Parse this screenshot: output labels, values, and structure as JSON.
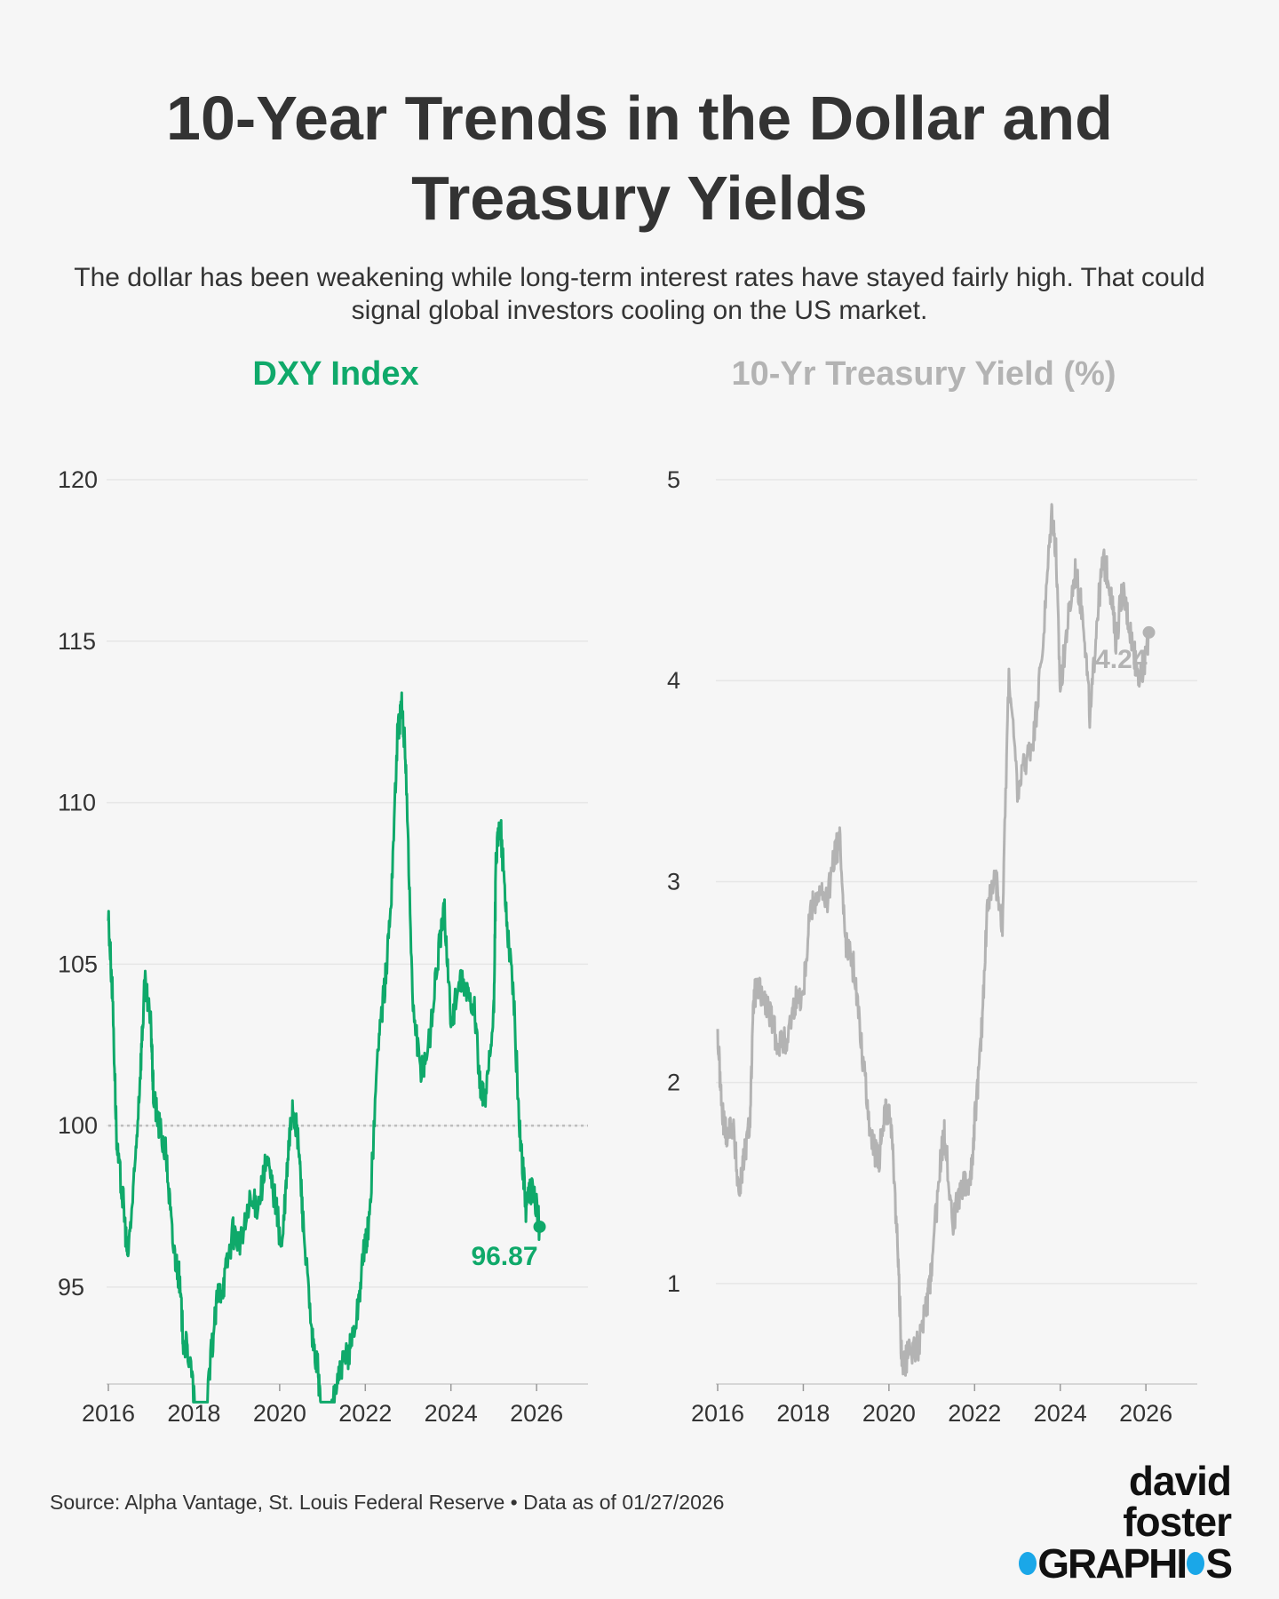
{
  "title": "10-Year Trends in the Dollar and Treasury Yields",
  "subtitle": "The dollar has been weakening while long-term interest rates have stayed fairly high. That could signal global investors cooling on the US market.",
  "source": "Source: Alpha Vantage, St. Louis Federal Reserve • Data as of 01/27/2026",
  "logo": {
    "line1": "david foster",
    "line2_part1": "GRAPHI",
    "line2_part2": "S",
    "dot_color": "#1aa7e8"
  },
  "colors": {
    "dxy": "#0fa96a",
    "treasury": "#b3b3b3",
    "text": "#333333",
    "grid": "#e6e6e6",
    "background": "#f6f6f6"
  },
  "chart_data": [
    {
      "type": "line",
      "title": "DXY Index",
      "xlabel": "",
      "ylabel": "",
      "x_ticks": [
        "2016",
        "2018",
        "2020",
        "2022",
        "2024",
        "2026"
      ],
      "y_ticks": [
        95,
        100,
        105,
        110,
        115,
        120
      ],
      "xlim": [
        2016.0,
        2027.2
      ],
      "ylim": [
        92.0,
        120.0
      ],
      "reference_line": 100,
      "end_label": "96.87",
      "grid": true,
      "series": [
        {
          "x": [
            2016.0,
            2016.1,
            2016.2,
            2016.35,
            2016.45,
            2016.6,
            2016.75,
            2016.85,
            2017.0,
            2017.05,
            2017.15,
            2017.35,
            2017.5,
            2017.65,
            2017.75,
            2017.9,
            2018.1,
            2018.2,
            2018.4,
            2018.55,
            2018.7,
            2018.9,
            2019.1,
            2019.3,
            2019.5,
            2019.7,
            2019.9,
            2020.05,
            2020.2,
            2020.3,
            2020.45,
            2020.55,
            2020.75,
            2020.9,
            2021.0,
            2021.1,
            2021.25,
            2021.45,
            2021.6,
            2021.8,
            2021.95,
            2022.1,
            2022.3,
            2022.45,
            2022.6,
            2022.75,
            2022.85,
            2022.95,
            2023.1,
            2023.3,
            2023.5,
            2023.7,
            2023.85,
            2024.0,
            2024.2,
            2024.35,
            2024.55,
            2024.7,
            2024.85,
            2025.0,
            2025.05,
            2025.15,
            2025.3,
            2025.45,
            2025.6,
            2025.75,
            2025.9,
            2026.07
          ],
          "y": [
            106.5,
            104.0,
            99.2,
            97.6,
            95.9,
            98.2,
            101.8,
            104.4,
            103.0,
            101.0,
            100.2,
            99.1,
            96.4,
            95.3,
            93.4,
            92.8,
            90.2,
            89.5,
            92.9,
            94.7,
            95.2,
            96.7,
            96.4,
            97.5,
            97.6,
            98.9,
            97.7,
            96.1,
            99.1,
            100.7,
            99.3,
            97.0,
            93.4,
            92.4,
            90.4,
            89.7,
            91.6,
            92.5,
            92.9,
            94.1,
            95.9,
            97.1,
            102.6,
            104.2,
            106.9,
            112.1,
            113.0,
            111.2,
            104.0,
            101.5,
            102.7,
            105.3,
            106.7,
            103.2,
            104.4,
            104.2,
            103.7,
            100.8,
            101.2,
            103.4,
            108.2,
            109.4,
            106.4,
            104.3,
            100.0,
            97.5,
            98.1,
            96.87
          ]
        }
      ]
    },
    {
      "type": "line",
      "title": "10-Yr Treasury Yield (%)",
      "xlabel": "",
      "ylabel": "",
      "x_ticks": [
        "2016",
        "2018",
        "2020",
        "2022",
        "2024",
        "2026"
      ],
      "y_ticks": [
        1,
        2,
        3,
        4,
        5
      ],
      "xlim": [
        2016.0,
        2027.2
      ],
      "ylim": [
        0.5,
        5.0
      ],
      "end_label": "4.24",
      "grid": true,
      "series": [
        {
          "x": [
            2016.0,
            2016.1,
            2016.2,
            2016.35,
            2016.5,
            2016.6,
            2016.75,
            2016.85,
            2017.0,
            2017.2,
            2017.4,
            2017.6,
            2017.8,
            2018.0,
            2018.15,
            2018.35,
            2018.55,
            2018.75,
            2018.85,
            2019.0,
            2019.2,
            2019.4,
            2019.6,
            2019.75,
            2019.9,
            2020.05,
            2020.2,
            2020.3,
            2020.5,
            2020.7,
            2020.9,
            2021.0,
            2021.2,
            2021.3,
            2021.5,
            2021.7,
            2021.9,
            2022.0,
            2022.15,
            2022.3,
            2022.5,
            2022.65,
            2022.8,
            2023.0,
            2023.2,
            2023.4,
            2023.6,
            2023.8,
            2023.9,
            2024.0,
            2024.15,
            2024.35,
            2024.55,
            2024.7,
            2024.85,
            2025.0,
            2025.15,
            2025.3,
            2025.45,
            2025.6,
            2025.75,
            2025.9,
            2026.07
          ],
          "y": [
            2.24,
            1.85,
            1.75,
            1.8,
            1.45,
            1.6,
            1.8,
            2.45,
            2.45,
            2.35,
            2.2,
            2.2,
            2.4,
            2.45,
            2.85,
            2.95,
            2.9,
            3.15,
            3.2,
            2.7,
            2.55,
            2.1,
            1.7,
            1.6,
            1.85,
            1.8,
            1.2,
            0.6,
            0.65,
            0.7,
            0.9,
            1.1,
            1.6,
            1.75,
            1.3,
            1.5,
            1.5,
            1.8,
            2.2,
            2.9,
            3.0,
            2.8,
            4.05,
            3.45,
            3.6,
            3.75,
            4.2,
            4.85,
            4.65,
            3.95,
            4.25,
            4.55,
            4.3,
            3.8,
            4.3,
            4.6,
            4.5,
            4.2,
            4.45,
            4.3,
            4.1,
            4.0,
            4.24
          ]
        }
      ]
    }
  ]
}
